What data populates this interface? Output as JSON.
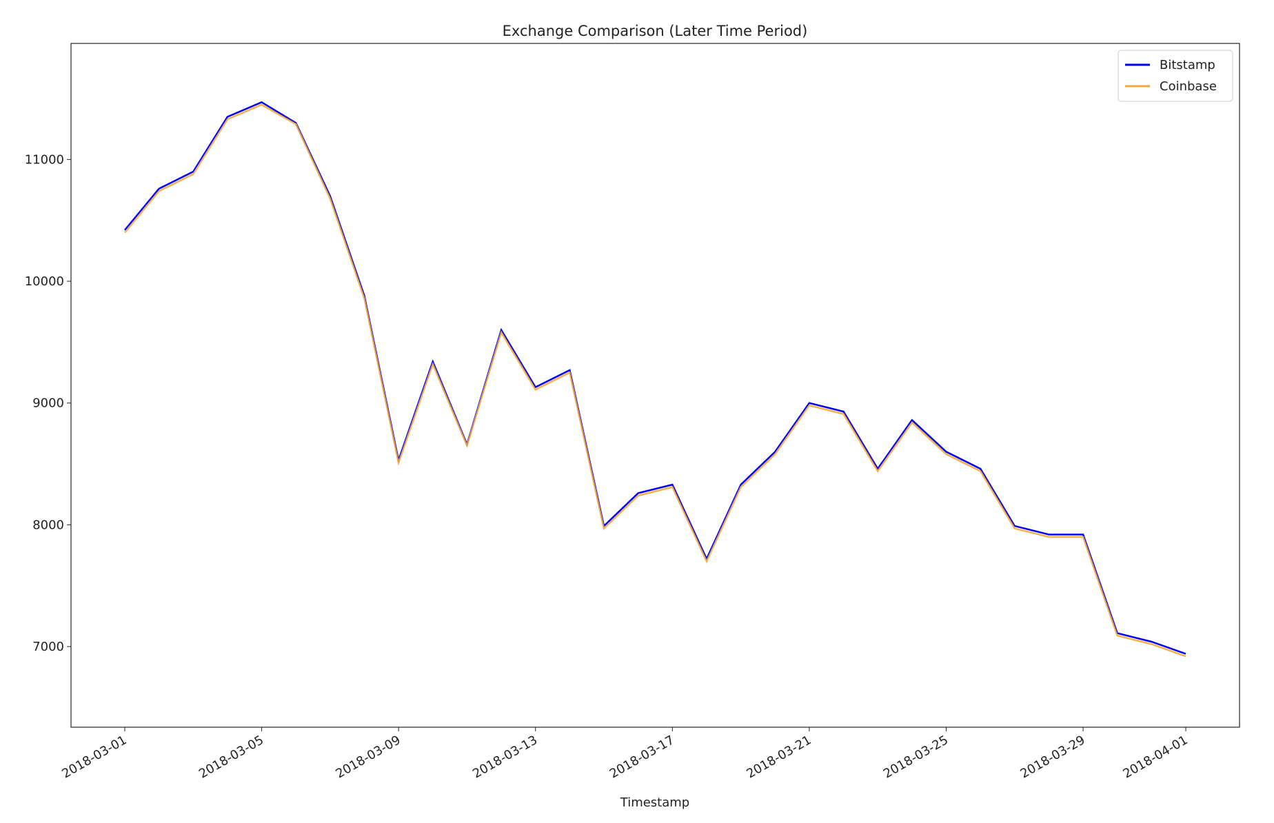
{
  "chart_data": {
    "type": "line",
    "title": "Exchange Comparison (Later Time Period)",
    "x_label": "Timestamp",
    "x": [
      "2018-03-01",
      "2018-03-02",
      "2018-03-03",
      "2018-03-04",
      "2018-03-05",
      "2018-03-06",
      "2018-03-07",
      "2018-03-08",
      "2018-03-09",
      "2018-03-10",
      "2018-03-11",
      "2018-03-12",
      "2018-03-13",
      "2018-03-14",
      "2018-03-15",
      "2018-03-16",
      "2018-03-17",
      "2018-03-18",
      "2018-03-19",
      "2018-03-20",
      "2018-03-21",
      "2018-03-22",
      "2018-03-23",
      "2018-03-24",
      "2018-03-25",
      "2018-03-26",
      "2018-03-27",
      "2018-03-28",
      "2018-03-29",
      "2018-03-30",
      "2018-03-31",
      "2018-04-01"
    ],
    "series": [
      {
        "name": "Bitstamp",
        "color": "#0000ff",
        "values": [
          10420,
          10760,
          10900,
          11350,
          11470,
          11300,
          10700,
          9880,
          8530,
          9340,
          8660,
          9600,
          9130,
          9270,
          7990,
          8260,
          8330,
          7720,
          8330,
          8600,
          9000,
          8930,
          8460,
          8860,
          8600,
          8460,
          7990,
          7920,
          7920,
          7110,
          7040,
          6940
        ]
      },
      {
        "name": "Coinbase",
        "color": "#f2a93b",
        "values": [
          10400,
          10740,
          10880,
          11330,
          11450,
          11290,
          10680,
          9860,
          8510,
          9320,
          8650,
          9580,
          9110,
          9250,
          7970,
          8240,
          8310,
          7700,
          8310,
          8580,
          8980,
          8910,
          8440,
          8840,
          8580,
          8440,
          7970,
          7900,
          7900,
          7090,
          7020,
          6920
        ]
      }
    ],
    "xlim": [
      "2018-02-27T10:19:00Z",
      "2018-04-02T13:41:00Z"
    ],
    "xticks": [
      "2018-03-01",
      "2018-03-05",
      "2018-03-09",
      "2018-03-13",
      "2018-03-17",
      "2018-03-21",
      "2018-03-25",
      "2018-03-29",
      "2018-04-01"
    ],
    "ylim": [
      6338,
      11953
    ],
    "yticks": [
      7000,
      8000,
      9000,
      10000,
      11000
    ],
    "legend": "upper right"
  }
}
